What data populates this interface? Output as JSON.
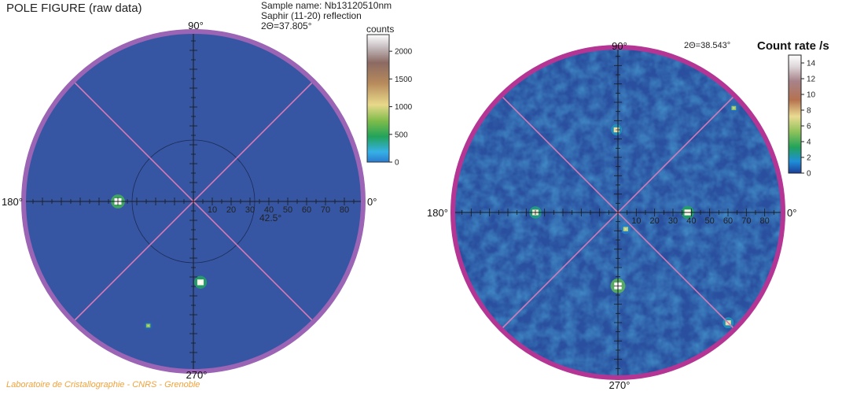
{
  "figure": {
    "title": "POLE FIGURE (raw data)",
    "credit": "Laboratoire de Cristallographie - CNRS - Grenoble"
  },
  "sample": {
    "name_line": "Sample name: Nb13120510nm",
    "reflection_line": "Saphir (11-20) reflection",
    "two_theta_line": "2Θ=37.805°"
  },
  "colors": {
    "rim_left": "#9b64b4",
    "rim_right": "#b53594",
    "field_left": "#3656a3",
    "field_right": "#2a4f9e",
    "diagonal": "#d77ab5",
    "axis": "#1a1a1a"
  },
  "chart_data": [
    {
      "type": "heatmap",
      "projection": "polar pole figure",
      "angle_labels": [
        "90°",
        "180°",
        "270°",
        "0°"
      ],
      "radial_ticks": [
        "10",
        "20",
        "30",
        "40",
        "50",
        "60",
        "70",
        "80"
      ],
      "annotation": "42.5°",
      "circle_psi_deg": 42.5,
      "psi_max_deg": 90,
      "colorbar": {
        "title": "counts",
        "ticks": [
          "2000",
          "1500",
          "1000",
          "500",
          "0"
        ],
        "range": [
          0,
          2300
        ]
      },
      "peaks": [
        {
          "phi_deg": 180,
          "psi_deg": 40,
          "intensity": 1500
        },
        {
          "phi_deg": 275,
          "psi_deg": 43,
          "intensity": 1200
        },
        {
          "phi_deg": 250,
          "psi_deg": 70,
          "intensity": 200
        }
      ]
    },
    {
      "type": "heatmap",
      "projection": "polar pole figure",
      "two_theta": "2Θ=38.543°",
      "angle_labels": [
        "90°",
        "180°",
        "270°",
        "0°"
      ],
      "radial_ticks": [
        "10",
        "20",
        "30",
        "40",
        "50",
        "60",
        "70",
        "80"
      ],
      "psi_max_deg": 90,
      "colorbar": {
        "title": "Count rate /s",
        "ticks": [
          "14",
          "12",
          "10",
          "8",
          "6",
          "4",
          "2",
          "0"
        ],
        "range": [
          0,
          15
        ]
      },
      "peaks": [
        {
          "phi_deg": 180,
          "psi_deg": 45,
          "intensity": 7
        },
        {
          "phi_deg": 0,
          "psi_deg": 38,
          "intensity": 8
        },
        {
          "phi_deg": 91,
          "psi_deg": 45,
          "intensity": 5
        },
        {
          "phi_deg": 270,
          "psi_deg": 40,
          "intensity": 11
        },
        {
          "phi_deg": 315,
          "psi_deg": 85,
          "intensity": 5
        },
        {
          "phi_deg": 295,
          "psi_deg": 10,
          "intensity": 3
        },
        {
          "phi_deg": 42,
          "psi_deg": 85,
          "intensity": 2
        }
      ]
    }
  ]
}
